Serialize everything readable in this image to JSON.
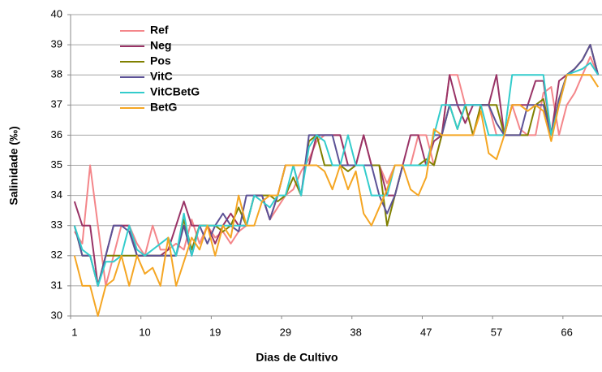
{
  "chart_data": {
    "type": "line",
    "x_label": "Dias de Cultivo",
    "y_label": "Salinidade (‰)",
    "categories": [
      "1",
      null,
      null,
      null,
      null,
      null,
      null,
      null,
      null,
      "10",
      null,
      null,
      null,
      null,
      null,
      null,
      null,
      null,
      "19",
      null,
      null,
      null,
      null,
      null,
      null,
      null,
      null,
      "29",
      null,
      null,
      null,
      null,
      null,
      null,
      null,
      null,
      "38",
      null,
      null,
      null,
      null,
      null,
      null,
      null,
      null,
      "47",
      null,
      null,
      null,
      null,
      null,
      null,
      null,
      null,
      "57",
      null,
      null,
      null,
      null,
      null,
      null,
      null,
      null,
      "66",
      null,
      null,
      null,
      null
    ],
    "ylim": [
      30,
      40
    ],
    "yticks": [
      30,
      31,
      32,
      33,
      34,
      35,
      36,
      37,
      38,
      39,
      40
    ],
    "grid": true,
    "legend": "top-left",
    "series": [
      {
        "name": "Ref",
        "color": "#f4868a",
        "values": [
          32.8,
          32.4,
          35,
          33,
          31,
          32,
          33,
          33,
          32.4,
          32,
          33,
          32.2,
          32.2,
          32.4,
          32.2,
          33.2,
          32.4,
          33,
          32.6,
          32.8,
          32.4,
          32.8,
          33,
          34,
          34,
          33.2,
          33.6,
          34,
          34.2,
          34.8,
          35.2,
          35.8,
          36,
          36,
          36,
          35,
          35,
          36,
          35,
          35,
          34.4,
          35,
          35,
          35,
          36,
          36,
          35,
          36,
          38,
          38,
          37,
          36,
          37,
          37,
          36,
          36,
          37,
          36.2,
          36,
          36,
          37.4,
          37.6,
          36,
          37,
          37.4,
          38,
          38.6,
          38
        ]
      },
      {
        "name": "Neg",
        "color": "#993366",
        "values": [
          33.8,
          33,
          33,
          31,
          32,
          33,
          33,
          33,
          32,
          32,
          32,
          32,
          32.2,
          33,
          33.8,
          33,
          33,
          33,
          32.4,
          33,
          33.4,
          33,
          33,
          34,
          34,
          33.2,
          34,
          35,
          35,
          35,
          35,
          36,
          36,
          36,
          36,
          35,
          35,
          36,
          35,
          35,
          34,
          34,
          35,
          36,
          36,
          35,
          35.8,
          36,
          38,
          37,
          36.4,
          37,
          37,
          37,
          38,
          36,
          37,
          37,
          37,
          37.8,
          37.8,
          36,
          37.8,
          38,
          38.2,
          38.5,
          39,
          38
        ]
      },
      {
        "name": "Pos",
        "color": "#808000",
        "values": [
          33,
          32,
          32,
          31,
          32,
          32,
          32,
          32,
          32,
          32,
          32,
          32,
          32,
          32,
          33.2,
          32.2,
          33,
          33,
          33,
          32.8,
          33,
          33.6,
          33,
          34,
          34,
          34,
          33.8,
          34,
          34.6,
          34,
          35.8,
          36,
          35,
          35,
          35,
          34.8,
          35,
          35,
          35,
          35,
          33,
          34,
          35,
          35,
          35,
          35.2,
          35,
          36,
          37,
          36.2,
          37,
          36,
          37,
          37,
          37,
          36,
          36,
          36,
          36,
          37,
          37.2,
          36,
          37.2,
          38,
          38.2,
          38.5,
          39,
          38
        ]
      },
      {
        "name": "VitC",
        "color": "#5c5296",
        "values": [
          33,
          32,
          32,
          31,
          32,
          33,
          33,
          32.8,
          32,
          32,
          32,
          32,
          32,
          32,
          33,
          32,
          33,
          32.4,
          33,
          33.4,
          33,
          32.8,
          34,
          34,
          34,
          33.2,
          34,
          35,
          35,
          34,
          36,
          36,
          36,
          36,
          35,
          35,
          35,
          35,
          35,
          34,
          33.4,
          34,
          35,
          35,
          35,
          35,
          36,
          36,
          37,
          37,
          37,
          37,
          37,
          37,
          36.4,
          36,
          36,
          36,
          37,
          37,
          37,
          36,
          37.2,
          38,
          38.2,
          38.5,
          39,
          38
        ]
      },
      {
        "name": "VitCBetG",
        "color": "#33cccc",
        "values": [
          33,
          32.2,
          32,
          31,
          31.8,
          31.8,
          32,
          33,
          32.2,
          32,
          32.2,
          32.4,
          32.6,
          32,
          33.4,
          32,
          33,
          33,
          33,
          33,
          33,
          33,
          33,
          34,
          33.8,
          33.6,
          34,
          34,
          35,
          34,
          35.6,
          36,
          35.8,
          35,
          35,
          36,
          35,
          35,
          34,
          34,
          34,
          35,
          35,
          35,
          35,
          35,
          36,
          37,
          37,
          36.2,
          37,
          37,
          37,
          36,
          36,
          36,
          38,
          38,
          38,
          38,
          38,
          36,
          37,
          38,
          38.1,
          38.2,
          38.4,
          38
        ]
      },
      {
        "name": "BetG",
        "color": "#f5a623",
        "values": [
          32,
          31,
          31,
          30,
          31,
          31.2,
          32,
          31,
          32,
          31.4,
          31.6,
          31,
          32.6,
          31,
          31.8,
          32.6,
          32.2,
          33,
          32,
          33,
          32.6,
          34,
          33,
          33,
          33.8,
          34,
          34,
          35,
          35,
          35,
          35,
          35,
          34.8,
          34.2,
          35,
          34.2,
          34.8,
          33.4,
          33,
          33.6,
          34.2,
          35,
          35,
          34.2,
          34,
          34.6,
          36.2,
          36,
          36,
          36,
          36,
          36,
          36.8,
          35.4,
          35.2,
          36,
          37,
          37,
          36.8,
          37,
          36.8,
          35.8,
          37,
          38,
          38,
          38,
          38,
          37.6
        ]
      }
    ]
  }
}
